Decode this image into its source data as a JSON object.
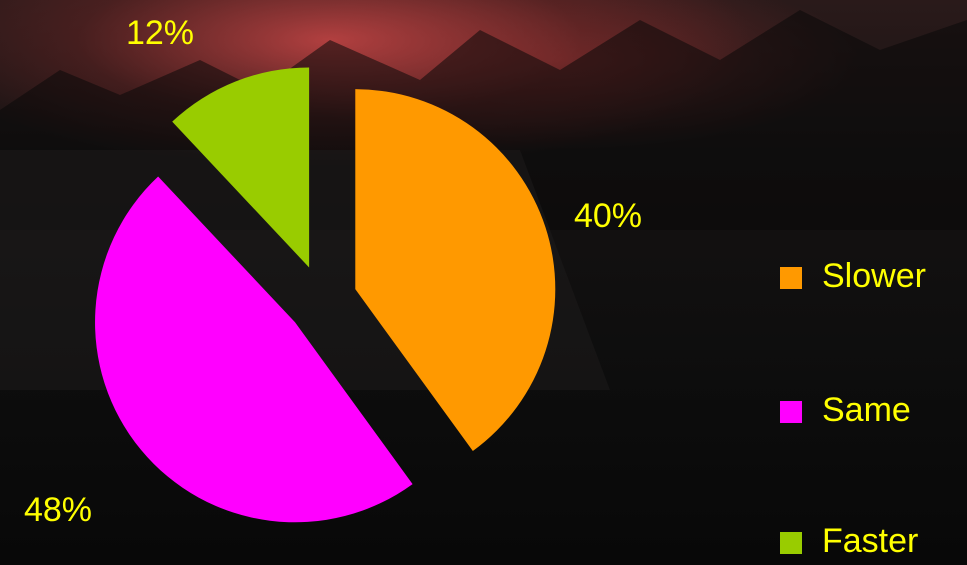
{
  "chart_data": {
    "type": "pie",
    "categories": [
      "Slower",
      "Same",
      "Faster"
    ],
    "values": [
      40,
      48,
      12
    ],
    "value_labels": [
      "40%",
      "48%",
      "12%"
    ],
    "colors": [
      "#ff9900",
      "#ff00ff",
      "#99cc00"
    ]
  }
}
